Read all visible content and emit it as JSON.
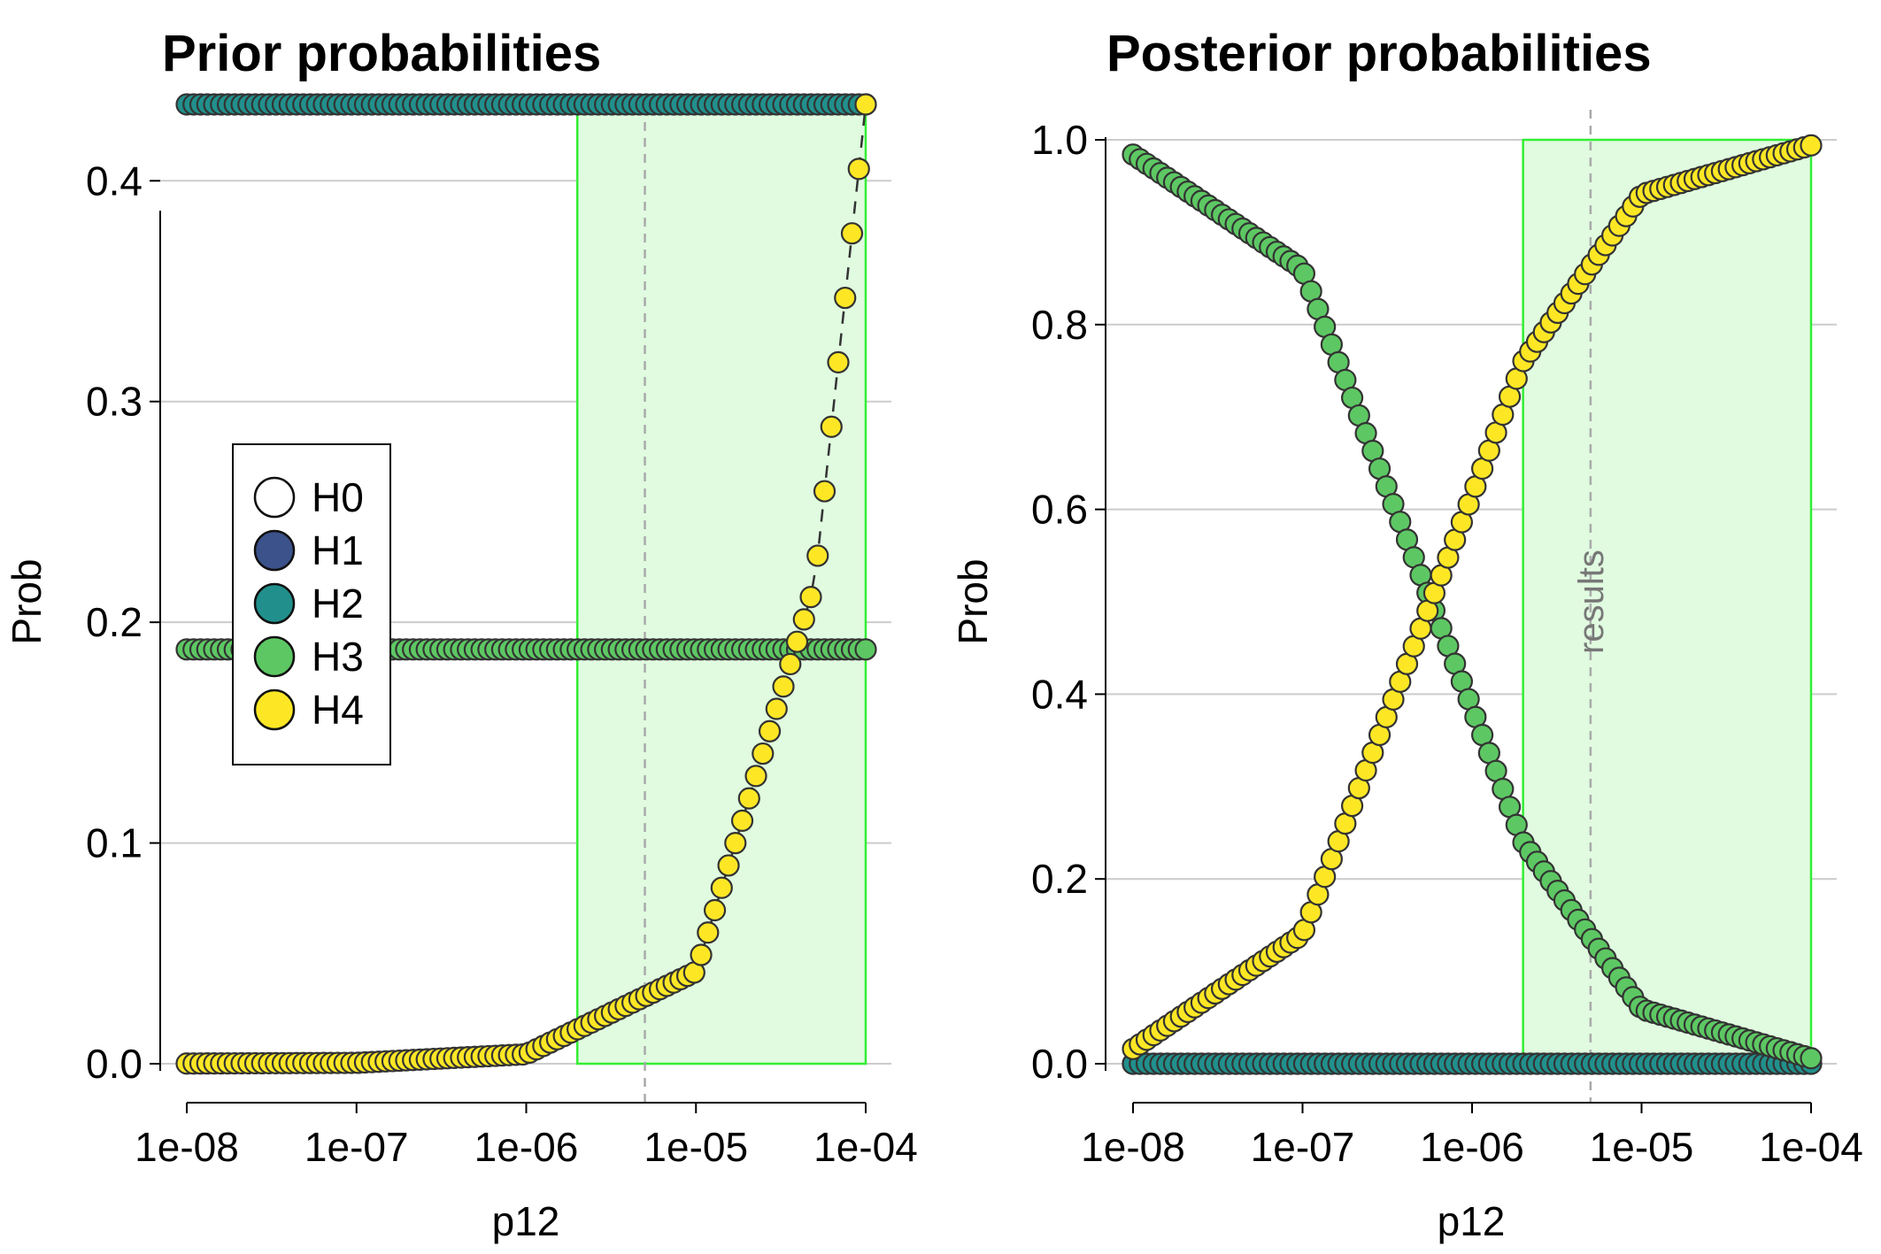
{
  "chart_data": [
    {
      "type": "scatter",
      "title": "Prior probabilities",
      "xlabel": "p12",
      "ylabel": "Prob",
      "xscale": "log",
      "xlim": [
        1e-08,
        0.0001
      ],
      "ylim": [
        0,
        0.435
      ],
      "x_ticks": [
        "1e-08",
        "1e-07",
        "1e-06",
        "1e-05",
        "1e-04"
      ],
      "y_ticks": [
        "0.0",
        "0.1",
        "0.2",
        "0.3",
        "0.4"
      ],
      "grid": "horizontal",
      "highlight_region": {
        "x": [
          2e-06,
          0.0001
        ],
        "color": "#e0fbe0",
        "edge": "#33ee33"
      },
      "reference_line_x": 5e-06,
      "legend": {
        "placement": "center-left",
        "entries": [
          "H0",
          "H1",
          "H2",
          "H3",
          "H4"
        ]
      },
      "x_range": [
        1e-08,
        0.0001
      ],
      "n_points": 100,
      "series": [
        {
          "name": "H2",
          "color": "#21908c",
          "constant": 0.4346
        },
        {
          "name": "H3",
          "color": "#5dc863",
          "constant": 0.1877
        },
        {
          "name": "H4",
          "color": "#fde725",
          "sample_points": [
            [
              1e-08,
              0.0001
            ],
            [
              1e-07,
              0.0004
            ],
            [
              1e-06,
              0.0043
            ],
            [
              1e-05,
              0.0417
            ],
            [
              5e-05,
              0.217
            ],
            [
              0.0001,
              0.4346
            ]
          ]
        }
      ]
    },
    {
      "type": "scatter",
      "title": "Posterior probabilities",
      "xlabel": "p12",
      "ylabel": "Prob",
      "xscale": "log",
      "xlim": [
        1e-08,
        0.0001
      ],
      "ylim": [
        0,
        1.0
      ],
      "x_ticks": [
        "1e-08",
        "1e-07",
        "1e-06",
        "1e-05",
        "1e-04"
      ],
      "y_ticks": [
        "0.0",
        "0.2",
        "0.4",
        "0.6",
        "0.8",
        "1.0"
      ],
      "grid": "horizontal",
      "highlight_region": {
        "x": [
          2e-06,
          0.0001
        ],
        "color": "#e0fbe0",
        "edge": "#33ee33"
      },
      "reference_line_x": 5e-06,
      "annotation": "results",
      "x_range": [
        1e-08,
        0.0001
      ],
      "n_points": 100,
      "series": [
        {
          "name": "H1",
          "color": "#3b528b",
          "constant": 0.0
        },
        {
          "name": "H2",
          "color": "#21908c",
          "constant": 0.0
        },
        {
          "name": "H3",
          "color": "#5dc863",
          "sample_points": [
            [
              1e-08,
              0.984
            ],
            [
              1e-07,
              0.86
            ],
            [
              1e-06,
              0.385
            ],
            [
              2e-06,
              0.24
            ],
            [
              1e-05,
              0.059
            ],
            [
              0.0001,
              0.006
            ]
          ]
        },
        {
          "name": "H4",
          "color": "#fde725",
          "sample_points": [
            [
              1e-08,
              0.016
            ],
            [
              1e-07,
              0.14
            ],
            [
              1e-06,
              0.615
            ],
            [
              2e-06,
              0.76
            ],
            [
              1e-05,
              0.941
            ],
            [
              0.0001,
              0.994
            ]
          ]
        }
      ]
    }
  ],
  "legend_colors": {
    "H0": "#ffffff",
    "H1": "#3b528b",
    "H2": "#21908c",
    "H3": "#5dc863",
    "H4": "#fde725"
  }
}
